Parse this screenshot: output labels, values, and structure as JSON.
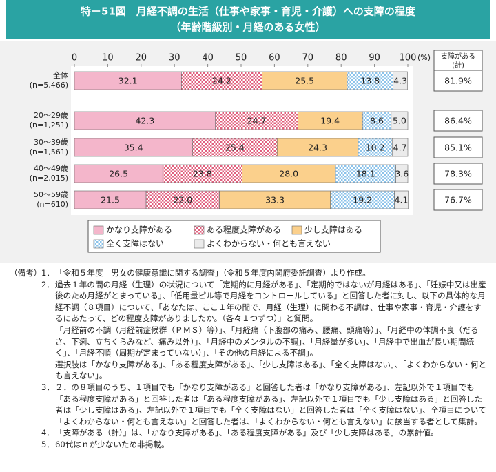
{
  "chart_data": {
    "type": "stacked-bar-horizontal",
    "title": [
      "特－51図　月経不調の生活（仕事や家事・育児・介護）への支障の程度",
      "（年齢階級別・月経のある女性）"
    ],
    "categories": [
      "全体",
      "20～29歳",
      "30～39歳",
      "40～49歳",
      "50～59歳"
    ],
    "n_labels": [
      "(n=5,466)",
      "(n=1,251)",
      "(n=1,561)",
      "(n=2,015)",
      "(n=610)"
    ],
    "xlim": [
      0,
      100
    ],
    "xticks": [
      0,
      10,
      20,
      30,
      40,
      50,
      60,
      70,
      80,
      90,
      100
    ],
    "xunit": "(%)",
    "series": [
      {
        "name": "かなり支障がある",
        "color": "#f4b6cb",
        "values": [
          32.1,
          42.3,
          35.4,
          26.5,
          21.5
        ],
        "value_labels": [
          "32.1",
          "42.3",
          "35.4",
          "26.5",
          "21.5"
        ]
      },
      {
        "name": "ある程度支障がある",
        "color": "#e0607e",
        "pattern": "check",
        "values": [
          24.2,
          24.7,
          25.4,
          23.8,
          22.0
        ],
        "value_labels": [
          "24.2",
          "24.7",
          "25.4",
          "23.8",
          "22.0"
        ]
      },
      {
        "name": "少し支障はある",
        "color": "#fbd08c",
        "values": [
          25.5,
          19.4,
          24.3,
          28.0,
          33.3
        ],
        "value_labels": [
          "25.5",
          "19.4",
          "24.3",
          "28.0",
          "33.3"
        ]
      },
      {
        "name": "全く支障はない",
        "color": "#8cc3ea",
        "pattern": "check",
        "values": [
          13.8,
          8.6,
          10.2,
          18.1,
          19.2
        ],
        "value_labels": [
          "13.8",
          "8.6",
          "10.2",
          "18.1",
          "19.2"
        ]
      },
      {
        "name": "よくわからない・何とも言えない",
        "color": "#ebebeb",
        "values": [
          4.3,
          5.0,
          4.7,
          3.6,
          4.1
        ],
        "value_labels": [
          "4.3",
          "5.0",
          "4.7",
          "3.6",
          "4.1"
        ]
      }
    ],
    "total": {
      "header": [
        "支障がある",
        "(計)"
      ],
      "values": [
        81.9,
        86.4,
        85.1,
        78.3,
        76.7
      ],
      "value_labels": [
        "81.9%",
        "86.4%",
        "85.1%",
        "78.3%",
        "76.7%"
      ]
    }
  },
  "notes": {
    "heading": "（備考）",
    "items": [
      {
        "num": "1．",
        "paragraphs": [
          "「令和５年度　男女の健康意識に関する調査」（令和５年度内閣府委託調査）より作成。"
        ]
      },
      {
        "num": "2．",
        "paragraphs": [
          "過去１年の間の月経（生理）の状況について「定期的に月経がある」、「定期的ではないが月経はある」、「妊娠中又は出産後のため月経がとまっている」、「低用量ピル等で月経をコントロールしている」と回答した者に対し、以下の具体的な月経不調（８項目）について、「あなたは、ここ１年の間で、月経（生理）に関わる不調は、仕事や家事・育児・介護をするにあたって、どの程度支障がありましたか。（各々１つずつ）」と質問。",
          "「月経前の不調（月経前症候群（ＰＭＳ）等）」、「月経痛（下腹部の痛み、腰痛、頭痛等）」、「月経中の体調不良（だるさ、下痢、立ちくらみなど、痛み以外）」、「月経中のメンタルの不調」、「月経量が多い」、「月経中で出血が長い期間続く」、「月経不順（周期が定まっていない）」、「その他の月経による不調」。",
          "選択肢は「かなり支障がある」、「ある程度支障がある」、「少し支障はある」、「全く支障はない」、「よくわからない・何とも言えない」。"
        ]
      },
      {
        "num": "3．",
        "paragraphs": [
          "２．の８項目のうち、１項目でも「かなり支障がある」と回答した者は「かなり支障がある」、左記以外で１項目でも「ある程度支障がある」と回答した者は「ある程度支障がある」、左記以外で１項目でも「少し支障はある」と回答した者は「少し支障はある」、左記以外で１項目でも「全く支障はない」と回答した者は「全く支障はない」、全項目について「よくわからない・何とも言えない」と回答した者は、「よくわからない・何とも言えない」に該当する者として集計。"
        ]
      },
      {
        "num": "4．",
        "paragraphs": [
          "「支障がある（計）」は、「かなり支障がある」、「ある程度支障がある」及び「少し支障はある」の累計値。"
        ]
      },
      {
        "num": "5．",
        "paragraphs": [
          "60代はｎが少ないため非掲載。"
        ]
      }
    ]
  }
}
